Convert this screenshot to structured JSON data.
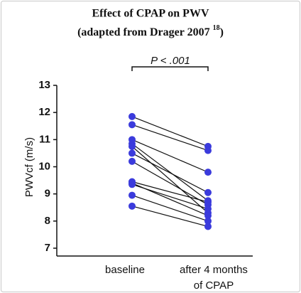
{
  "chart_data": {
    "type": "paired_line",
    "title": "Effect of CPAP on PWV",
    "subtitle": [
      "(adapted from Drager 2007 ",
      "18",
      ")"
    ],
    "annotation": "P < .001",
    "y_label": "PWVcf (m/s)",
    "categories": [
      [
        "baseline"
      ],
      [
        "after 4 months",
        "of CPAP"
      ]
    ],
    "series": [
      {
        "values": [
          11.85,
          10.75
        ]
      },
      {
        "values": [
          11.55,
          10.6
        ]
      },
      {
        "values": [
          11.0,
          9.8
        ]
      },
      {
        "values": [
          10.85,
          8.75
        ]
      },
      {
        "values": [
          10.75,
          8.3
        ]
      },
      {
        "values": [
          10.5,
          9.05
        ]
      },
      {
        "values": [
          10.2,
          8.6
        ]
      },
      {
        "values": [
          9.45,
          8.7
        ]
      },
      {
        "values": [
          9.4,
          8.2
        ]
      },
      {
        "values": [
          9.35,
          8.45
        ]
      },
      {
        "values": [
          8.95,
          8.0
        ]
      },
      {
        "values": [
          8.55,
          7.8
        ]
      }
    ],
    "color": "#3b3bdc",
    "line_color": "#111111",
    "ylim": [
      7,
      13
    ],
    "yticks": [
      7,
      8,
      9,
      10,
      11,
      12,
      13
    ]
  }
}
